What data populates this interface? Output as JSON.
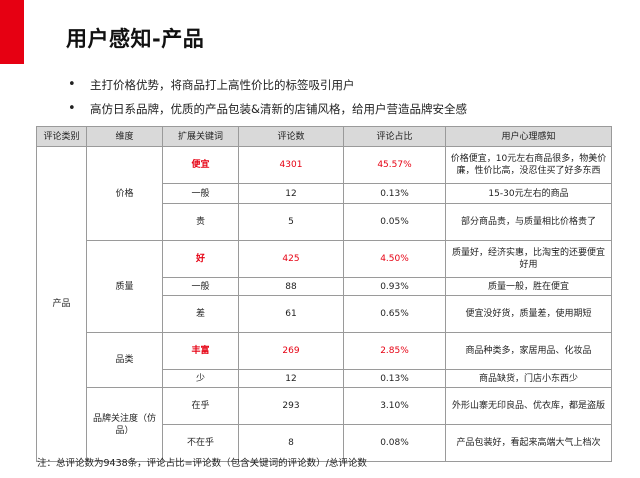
{
  "title": "用户感知-产品",
  "bullets": [
    "主打价格优势，将商品打上高性价比的标签吸引用户",
    "高仿日系品牌，优质的产品包装&清新的店铺风格，给用户营造品牌安全感"
  ],
  "table": {
    "headers": [
      "评论类别",
      "维度",
      "扩展关键词",
      "评论数",
      "评论占比",
      "用户心理感知"
    ],
    "category": "产品",
    "dimensions": {
      "price": "价格",
      "quality": "质量",
      "variety": "品类",
      "brand": "品牌关注度（仿品）"
    },
    "rows": [
      {
        "keyword": "便宜",
        "count": "4301",
        "ratio": "45.57%",
        "perception": "价格便宜，10元左右商品很多，物美价廉，性价比高，没忍住买了好多东西"
      },
      {
        "keyword": "一般",
        "count": "12",
        "ratio": "0.13%",
        "perception": "15-30元左右的商品"
      },
      {
        "keyword": "贵",
        "count": "5",
        "ratio": "0.05%",
        "perception": "部分商品贵，与质量相比价格贵了"
      },
      {
        "keyword": "好",
        "count": "425",
        "ratio": "4.50%",
        "perception": "质量好，经济实惠，比淘宝的还要便宜好用"
      },
      {
        "keyword": "一般",
        "count": "88",
        "ratio": "0.93%",
        "perception": "质量一般，胜在便宜"
      },
      {
        "keyword": "差",
        "count": "61",
        "ratio": "0.65%",
        "perception": "便宜没好货，质量差，使用期短"
      },
      {
        "keyword": "丰富",
        "count": "269",
        "ratio": "2.85%",
        "perception": "商品种类多，家居用品、化妆品"
      },
      {
        "keyword": "少",
        "count": "12",
        "ratio": "0.13%",
        "perception": "商品缺货，门店小东西少"
      },
      {
        "keyword": "在乎",
        "count": "293",
        "ratio": "3.10%",
        "perception": "外形山寨无印良品、优衣库，都是盗版"
      },
      {
        "keyword": "不在乎",
        "count": "8",
        "ratio": "0.08%",
        "perception": "产品包装好，看起来高端大气上档次"
      }
    ]
  },
  "note": "注：总评论数为9438条，评论占比=评论数（包含关键词的评论数）/总评论数",
  "colors": {
    "accent": "#e60012",
    "header_bg": "#d9d9d9"
  }
}
